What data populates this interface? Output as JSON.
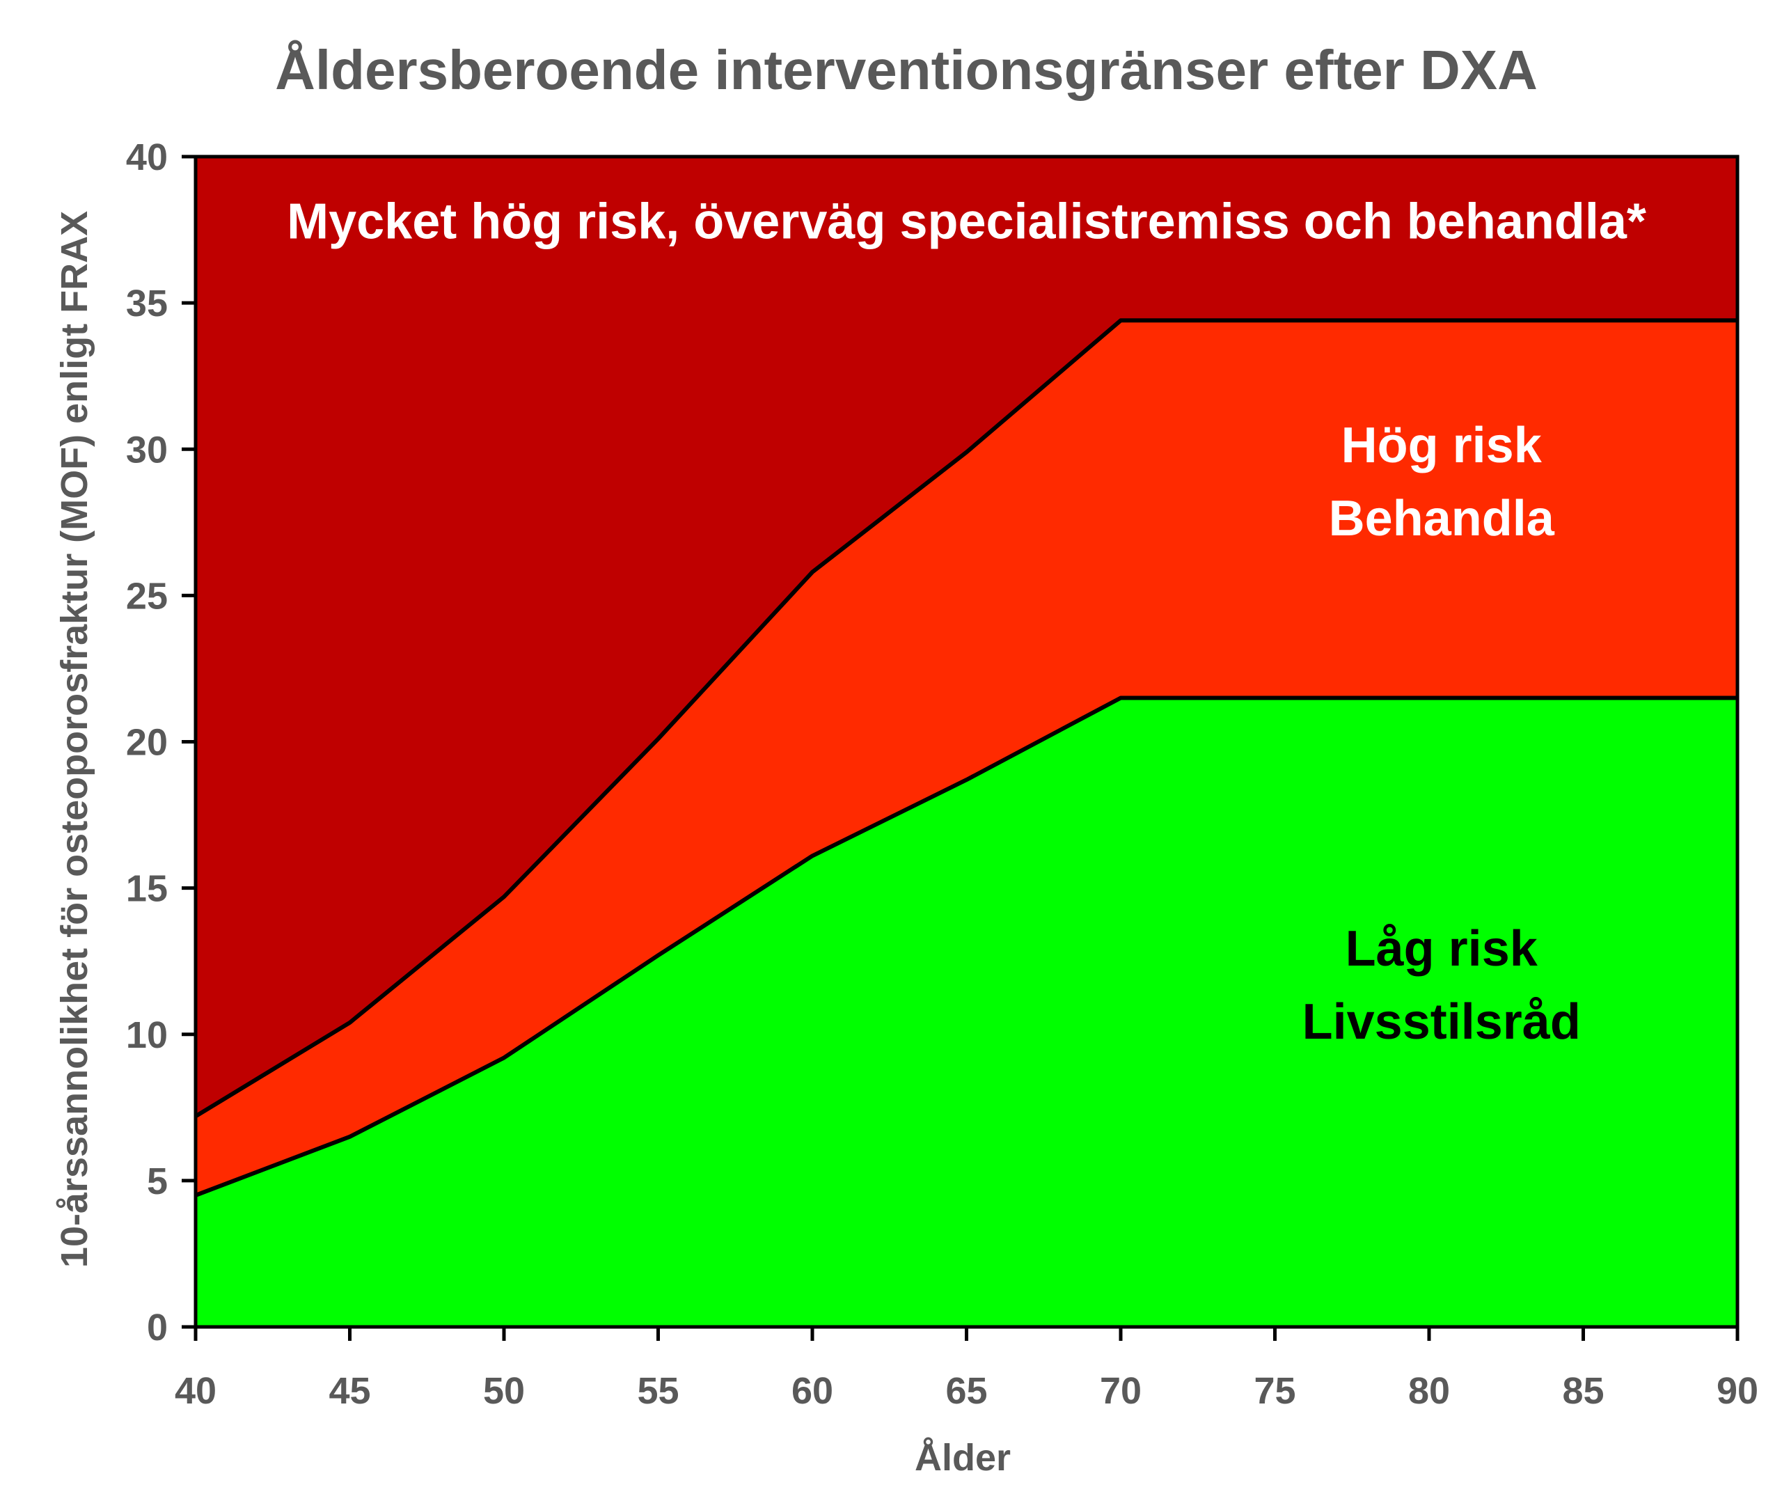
{
  "chart_data": {
    "type": "area",
    "title": "Åldersberoende interventionsgränser efter DXA",
    "xlabel": "Ålder",
    "ylabel": "10-årssannolikhet för osteoporosfraktur (MOF) enligt FRAX",
    "xlim": [
      40,
      90
    ],
    "ylim": [
      0,
      40
    ],
    "xticks": [
      40,
      45,
      50,
      55,
      60,
      65,
      70,
      75,
      80,
      85,
      90
    ],
    "yticks": [
      0,
      5,
      10,
      15,
      20,
      25,
      30,
      35,
      40
    ],
    "grid": false,
    "x": [
      40,
      45,
      50,
      55,
      60,
      65,
      70,
      90
    ],
    "series": [
      {
        "name": "Låg risk",
        "color": "#00ff00",
        "values": [
          4.5,
          6.5,
          9.2,
          12.7,
          16.1,
          18.7,
          21.5,
          21.5
        ]
      },
      {
        "name": "Hög risk",
        "color": "#ff2a00",
        "values": [
          7.2,
          10.4,
          14.7,
          20.1,
          25.8,
          29.9,
          34.4,
          34.4
        ]
      },
      {
        "name": "Mycket hög risk",
        "color": "#bf0000",
        "values": [
          40,
          40,
          40,
          40,
          40,
          40,
          40,
          40
        ]
      }
    ],
    "annotations": [
      {
        "id": "very-high",
        "lines": [
          "Mycket hög risk, överväg specialistremiss och behandla*"
        ],
        "color": "#ffffff",
        "x": 65,
        "y": 37.8
      },
      {
        "id": "high",
        "lines": [
          "Hög risk",
          "Behandla"
        ],
        "color": "#ffffff",
        "x": 80.4,
        "y": 28.9
      },
      {
        "id": "low",
        "lines": [
          "Låg risk",
          "Livsstilsråd"
        ],
        "color": "#000000",
        "x": 80.4,
        "y": 11.7
      }
    ]
  }
}
